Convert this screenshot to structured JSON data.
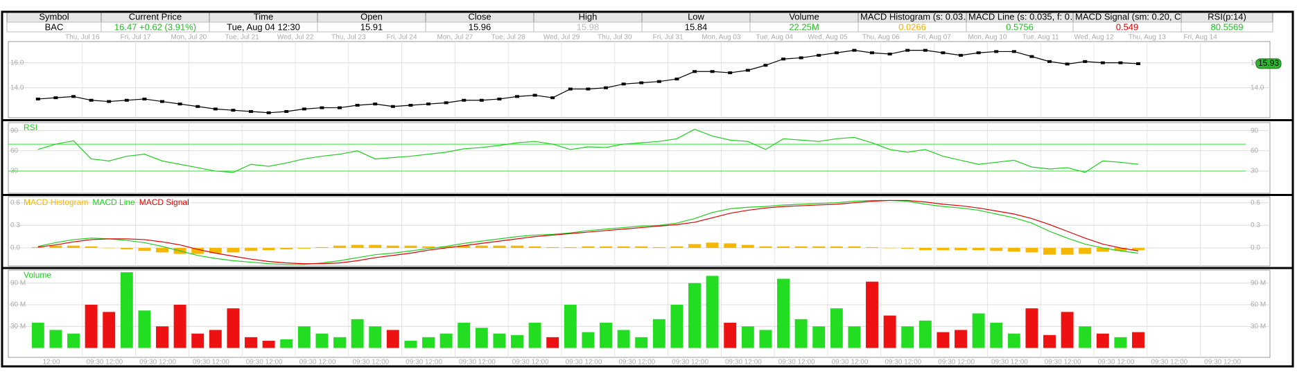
{
  "table": {
    "columns": [
      "Symbol",
      "Current Price",
      "Time",
      "Open",
      "Close",
      "High",
      "Low",
      "Volume",
      "MACD Histogram (s: 0.03…",
      "MACD Line (s: 0.035, f: 0…",
      "MACD Signal (sm: 0.20, C…",
      "RSI(p:14)"
    ],
    "row": [
      "BAC",
      "16.47 +0.62 (3.91%)",
      "Tue, Aug 04  12:30",
      "15.91",
      "15.96",
      "15.98",
      "15.84",
      "22.25M",
      "0.0266",
      "0.5756",
      "0.549",
      "80.5569"
    ],
    "row_colors": [
      "#000000",
      "#22bb22",
      "#000000",
      "#000000",
      "#000000",
      "#bbbbbb",
      "#000000",
      "#22bb22",
      "#f0b000",
      "#22bb22",
      "#dd0000",
      "#22bb22"
    ]
  },
  "chart_data": [
    {
      "type": "line",
      "markers": true,
      "grid": true,
      "xtick_labels": [
        "Thu, Jul 16",
        "Fri, Jul 17",
        "Mon, Jul 20",
        "Tue, Jul 21",
        "Wed, Jul 22",
        "Thu, Jul 23",
        "Fri, Jul 24",
        "Mon, Jul 27",
        "Tue, Jul 28",
        "Wed, Jul 29",
        "Thu, Jul 30",
        "Fri, Jul 31",
        "Mon, Aug 03",
        "Tue, Aug 04",
        "Wed, Aug 05",
        "Thu, Aug 06",
        "Fri, Aug 07",
        "Mon, Aug 10",
        "Tue, Aug 11",
        "Wed, Aug 12",
        "Thu, Aug 13",
        "Fri, Aug 14"
      ],
      "series": [
        {
          "color": "#000000",
          "values": [
            13.1,
            13.2,
            13.3,
            13.0,
            12.9,
            13.0,
            13.1,
            12.9,
            12.7,
            12.5,
            12.3,
            12.2,
            12.1,
            12.0,
            12.1,
            12.3,
            12.4,
            12.4,
            12.6,
            12.7,
            12.5,
            12.6,
            12.7,
            12.8,
            13.0,
            13.0,
            13.1,
            13.3,
            13.4,
            13.2,
            13.9,
            13.9,
            14.0,
            14.3,
            14.4,
            14.5,
            14.7,
            15.3,
            15.3,
            15.2,
            15.4,
            15.8,
            16.3,
            16.4,
            16.6,
            16.8,
            17.0,
            16.8,
            16.7,
            17.0,
            17.0,
            16.8,
            16.6,
            16.8,
            16.9,
            16.9,
            16.5,
            16.1,
            15.9,
            16.1,
            16.0,
            16.0,
            15.93
          ]
        }
      ],
      "last_color": "#2eb82e",
      "ylim": [
        11.6,
        17.7
      ],
      "yticks": [
        {
          "value": 14,
          "label": "14.0"
        },
        {
          "value": 16,
          "label": "16.0"
        }
      ]
    },
    {
      "type": "line",
      "title": "RSI",
      "title_color": "#22cc22",
      "grid": true,
      "series": [
        {
          "color": "#22cc22",
          "values": [
            62,
            70,
            75,
            48,
            45,
            52,
            55,
            45,
            40,
            35,
            30,
            28,
            40,
            37,
            42,
            48,
            52,
            55,
            60,
            48,
            50,
            52,
            55,
            58,
            63,
            65,
            68,
            72,
            74,
            70,
            62,
            66,
            65,
            70,
            72,
            74,
            78,
            92,
            82,
            76,
            74,
            62,
            78,
            76,
            74,
            78,
            80,
            72,
            62,
            58,
            62,
            52,
            46,
            40,
            43,
            46,
            36,
            33,
            35,
            28,
            45,
            43,
            40
          ]
        }
      ],
      "levels": [
        30,
        70
      ],
      "level_color": "#33dd33",
      "ylim": [
        -3,
        102
      ],
      "yticks": [
        30,
        60,
        90
      ]
    },
    {
      "type": "macd",
      "grid": true,
      "series": [
        {
          "name": "MACD Histogram",
          "color": "#f5b800",
          "values": [
            0.01,
            0.03,
            0.03,
            0.02,
            0.0,
            -0.02,
            -0.04,
            -0.06,
            -0.08,
            -0.08,
            -0.07,
            -0.06,
            -0.04,
            -0.03,
            -0.02,
            -0.01,
            0.01,
            0.03,
            0.04,
            0.04,
            0.03,
            0.03,
            0.02,
            0.02,
            0.03,
            0.03,
            0.03,
            0.03,
            0.02,
            0.01,
            0.01,
            0.02,
            0.02,
            0.02,
            0.02,
            0.01,
            0.02,
            0.05,
            0.07,
            0.06,
            0.04,
            0.02,
            0.02,
            0.02,
            0.02,
            0.02,
            0.02,
            0.01,
            0.0,
            -0.01,
            -0.03,
            -0.03,
            -0.03,
            -0.03,
            -0.04,
            -0.05,
            -0.06,
            -0.09,
            -0.09,
            -0.08,
            -0.05,
            -0.04,
            -0.03
          ]
        },
        {
          "name": "MACD Line",
          "color": "#22cc22",
          "values": [
            0.02,
            0.07,
            0.11,
            0.13,
            0.12,
            0.1,
            0.07,
            0.02,
            -0.04,
            -0.1,
            -0.14,
            -0.17,
            -0.19,
            -0.21,
            -0.22,
            -0.22,
            -0.2,
            -0.17,
            -0.13,
            -0.09,
            -0.07,
            -0.04,
            -0.01,
            0.02,
            0.06,
            0.09,
            0.12,
            0.15,
            0.17,
            0.18,
            0.2,
            0.23,
            0.25,
            0.27,
            0.29,
            0.3,
            0.33,
            0.39,
            0.47,
            0.52,
            0.54,
            0.55,
            0.57,
            0.58,
            0.59,
            0.6,
            0.62,
            0.63,
            0.63,
            0.62,
            0.58,
            0.55,
            0.53,
            0.5,
            0.45,
            0.4,
            0.33,
            0.22,
            0.13,
            0.05,
            0.0,
            -0.04,
            -0.07
          ]
        },
        {
          "name": "MACD Signal",
          "color": "#e00000",
          "values": [
            0.01,
            0.04,
            0.08,
            0.11,
            0.12,
            0.12,
            0.11,
            0.08,
            0.04,
            -0.02,
            -0.07,
            -0.11,
            -0.15,
            -0.18,
            -0.2,
            -0.21,
            -0.21,
            -0.2,
            -0.17,
            -0.13,
            -0.1,
            -0.07,
            -0.03,
            0.0,
            0.03,
            0.06,
            0.09,
            0.12,
            0.15,
            0.17,
            0.19,
            0.21,
            0.23,
            0.25,
            0.27,
            0.29,
            0.31,
            0.34,
            0.4,
            0.46,
            0.5,
            0.53,
            0.55,
            0.56,
            0.57,
            0.58,
            0.6,
            0.62,
            0.63,
            0.63,
            0.61,
            0.58,
            0.56,
            0.53,
            0.49,
            0.45,
            0.39,
            0.31,
            0.22,
            0.13,
            0.05,
            0.0,
            -0.04
          ]
        }
      ],
      "ylim": [
        -0.24,
        0.68
      ],
      "yticks": [
        {
          "value": 0,
          "label": "0.0"
        },
        0.3,
        0.6
      ]
    },
    {
      "type": "bar",
      "title": "Volume",
      "title_color": "#22cc22",
      "grid": true,
      "up_color": "#22dd22",
      "down_color": "#ee1111",
      "series": [
        {
          "values": [
            35,
            25,
            20,
            60,
            50,
            105,
            52,
            30,
            60,
            20,
            25,
            55,
            15,
            10,
            12,
            30,
            20,
            15,
            40,
            30,
            25,
            10,
            15,
            20,
            35,
            28,
            20,
            18,
            35,
            15,
            60,
            22,
            35,
            25,
            15,
            40,
            60,
            90,
            100,
            35,
            30,
            25,
            96,
            40,
            30,
            55,
            30,
            92,
            45,
            30,
            38,
            22,
            25,
            48,
            35,
            20,
            55,
            18,
            50,
            30,
            20,
            15,
            22
          ]
        }
      ],
      "ylim": [
        -13,
        108
      ],
      "yticks": [
        {
          "value": 30,
          "label": "30 M"
        },
        {
          "value": 60,
          "label": "60 M"
        },
        {
          "value": 90,
          "label": "90 M"
        }
      ],
      "xtick_labels": [
        "12:00",
        "09:30 12:00",
        "09:30 12:00",
        "09:30 12:00",
        "09:30 12:00",
        "09:30 12:00",
        "09:30 12:00",
        "09:30 12:00",
        "09:30 12:00",
        "09:30 12:00",
        "09:30 12:00",
        "09:30 12:00",
        "09:30 12:00",
        "09:30 12:00",
        "09:30 12:00",
        "09:30 12:00",
        "09:30 12:00",
        "09:30 12:00",
        "09:30 12:00",
        "09:30 12:00",
        "09:30 12:00",
        "09:30 12:00",
        "09:30 12:00"
      ]
    }
  ]
}
